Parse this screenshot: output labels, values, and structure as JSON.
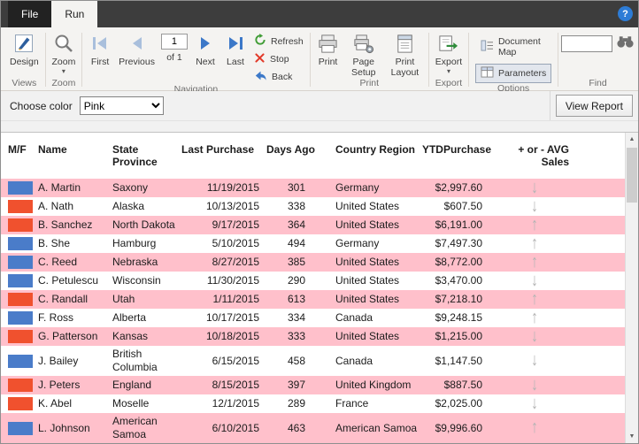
{
  "titlebar": {
    "help_label": "?"
  },
  "tabs": {
    "file": "File",
    "run": "Run"
  },
  "ribbon": {
    "design": "Design",
    "zoom_button": "Zoom",
    "first": "First",
    "previous": "Previous",
    "next": "Next",
    "last": "Last",
    "page_value": "1",
    "page_of": "of 1",
    "refresh": "Refresh",
    "stop": "Stop",
    "back": "Back",
    "print": "Print",
    "page_setup": "Page Setup",
    "print_layout": "Print Layout",
    "export": "Export",
    "document_map": "Document Map",
    "parameters": "Parameters",
    "group_labels": {
      "views": "Views",
      "zoom": "Zoom",
      "navigation": "Navigation",
      "print": "Print",
      "export": "Export",
      "options": "Options",
      "find": "Find"
    }
  },
  "params": {
    "choose_color_label": "Choose color",
    "color_value": "Pink",
    "view_report_label": "View Report"
  },
  "report": {
    "headers": {
      "mf": "M/F",
      "name": "Name",
      "state": "State Province",
      "last_purchase": "Last Purchase",
      "days_ago": "Days Ago",
      "country": "Country Region",
      "ytd": "YTDPurchase",
      "avg": "+ or - AVG Sales"
    },
    "rows": [
      {
        "mf": "blue",
        "name": "A. Martin",
        "state": "Saxony",
        "last_purchase": "11/19/2015",
        "days_ago": "301",
        "country": "Germany",
        "ytd": "$2,997.60",
        "trend": "down",
        "highlight": true
      },
      {
        "mf": "red",
        "name": "A. Nath",
        "state": "Alaska",
        "last_purchase": "10/13/2015",
        "days_ago": "338",
        "country": "United States",
        "ytd": "$607.50",
        "trend": "down",
        "highlight": false
      },
      {
        "mf": "red",
        "name": "B. Sanchez",
        "state": "North Dakota",
        "last_purchase": "9/17/2015",
        "days_ago": "364",
        "country": "United States",
        "ytd": "$6,191.00",
        "trend": "up",
        "highlight": true
      },
      {
        "mf": "blue",
        "name": "B. She",
        "state": "Hamburg",
        "last_purchase": "5/10/2015",
        "days_ago": "494",
        "country": "Germany",
        "ytd": "$7,497.30",
        "trend": "up",
        "highlight": false
      },
      {
        "mf": "blue",
        "name": "C. Reed",
        "state": "Nebraska",
        "last_purchase": "8/27/2015",
        "days_ago": "385",
        "country": "United States",
        "ytd": "$8,772.00",
        "trend": "up",
        "highlight": true
      },
      {
        "mf": "blue",
        "name": "C. Petulescu",
        "state": "Wisconsin",
        "last_purchase": "11/30/2015",
        "days_ago": "290",
        "country": "United States",
        "ytd": "$3,470.00",
        "trend": "down",
        "highlight": false
      },
      {
        "mf": "red",
        "name": "C. Randall",
        "state": "Utah",
        "last_purchase": "1/11/2015",
        "days_ago": "613",
        "country": "United States",
        "ytd": "$7,218.10",
        "trend": "up",
        "highlight": true
      },
      {
        "mf": "blue",
        "name": "F. Ross",
        "state": "Alberta",
        "last_purchase": "10/17/2015",
        "days_ago": "334",
        "country": "Canada",
        "ytd": "$9,248.15",
        "trend": "up",
        "highlight": false
      },
      {
        "mf": "red",
        "name": "G. Patterson",
        "state": "Kansas",
        "last_purchase": "10/18/2015",
        "days_ago": "333",
        "country": "United States",
        "ytd": "$1,215.00",
        "trend": "down",
        "highlight": true
      },
      {
        "mf": "blue",
        "name": "J. Bailey",
        "state": "British Columbia",
        "last_purchase": "6/15/2015",
        "days_ago": "458",
        "country": "Canada",
        "ytd": "$1,147.50",
        "trend": "down",
        "highlight": false
      },
      {
        "mf": "red",
        "name": "J. Peters",
        "state": "England",
        "last_purchase": "8/15/2015",
        "days_ago": "397",
        "country": "United Kingdom",
        "ytd": "$887.50",
        "trend": "down",
        "highlight": true
      },
      {
        "mf": "red",
        "name": "K. Abel",
        "state": "Moselle",
        "last_purchase": "12/1/2015",
        "days_ago": "289",
        "country": "France",
        "ytd": "$2,025.00",
        "trend": "down",
        "highlight": false
      },
      {
        "mf": "blue",
        "name": "L. Johnson",
        "state": "American Samoa",
        "last_purchase": "6/10/2015",
        "days_ago": "463",
        "country": "American Samoa",
        "ytd": "$9,996.60",
        "trend": "up",
        "highlight": true
      }
    ]
  },
  "colors": {
    "row_highlight": "#ffc0cb",
    "blue": "#4a7cc9",
    "red": "#f0512e",
    "trend_arrow": "#b4b4b4"
  }
}
